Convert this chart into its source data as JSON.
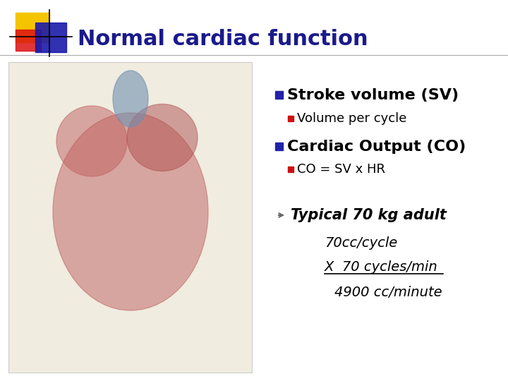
{
  "title": "Normal cardiac function",
  "title_color": "#1a1a8c",
  "title_fontsize": 22,
  "bg_color": "#ffffff",
  "header_line_color": "#aaaaaa",
  "bullet1_text": "Stroke volume (SV)",
  "bullet1_sub": "Volume per cycle",
  "bullet2_text": "Cardiac Output (CO)",
  "bullet2_sub": "CO = SV x HR",
  "arrow_text": "Typical 70 kg adult",
  "line1": "70cc/cycle",
  "line2": "X  70 cycles/min",
  "line3": "4900 cc/minute",
  "bullet_color": "#2222aa",
  "sub_bullet_color": "#cc1111",
  "text_color": "#000000",
  "italic_color": "#000000",
  "logo_yellow": "#f5c400",
  "logo_red": "#dd1111",
  "logo_blue": "#1a1aaa",
  "heart_bg": "#f0ece0",
  "heart_border": "#cccccc"
}
